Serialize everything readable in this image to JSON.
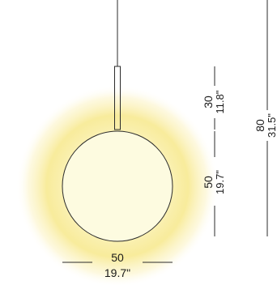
{
  "diagram": {
    "bottom_width": {
      "metric": "50",
      "imperial": "19.7\""
    },
    "rod_length": {
      "metric": "30",
      "imperial": "11.8\""
    },
    "globe_height": {
      "metric": "50",
      "imperial": "19.7\""
    },
    "total_height": {
      "metric": "80",
      "imperial": "31.5\""
    },
    "colors": {
      "glow_center": "#fdfbd6",
      "glow_edge": "#f4e07a",
      "line": "#2b2b2b"
    }
  }
}
